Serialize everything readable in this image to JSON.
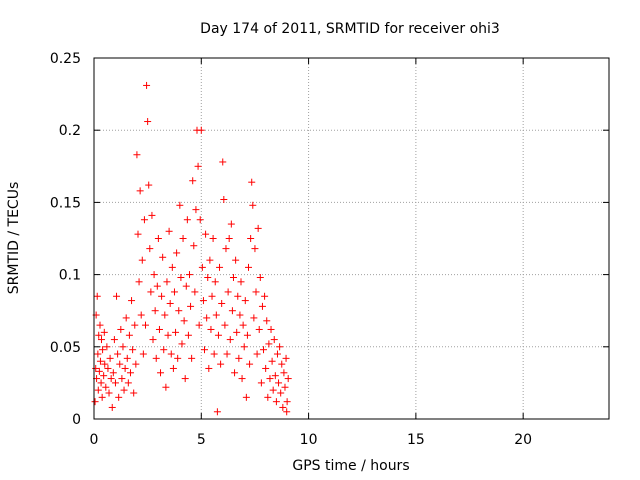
{
  "chart_data": {
    "type": "scatter",
    "title": "Day 174 of 2011, SRMTID for receiver ohi3",
    "xlabel": "GPS time / hours",
    "ylabel": "SRMTID / TECUs",
    "xlim": [
      0,
      24
    ],
    "ylim": [
      0,
      0.25
    ],
    "xticks": [
      0,
      5,
      10,
      15,
      20
    ],
    "yticks": [
      0,
      0.05,
      0.1,
      0.15,
      0.2,
      0.25
    ],
    "xtick_labels": [
      "0",
      "5",
      "10",
      "15",
      "20"
    ],
    "ytick_labels": [
      "0",
      "0.05",
      "0.1",
      "0.15",
      "0.2",
      "0.25"
    ],
    "grid": true,
    "marker": "+",
    "color": "#ff0000",
    "series": [
      {
        "name": "ohi3",
        "points": [
          [
            0.05,
            0.012
          ],
          [
            0.08,
            0.035
          ],
          [
            0.1,
            0.072
          ],
          [
            0.12,
            0.028
          ],
          [
            0.15,
            0.085
          ],
          [
            0.18,
            0.045
          ],
          [
            0.2,
            0.02
          ],
          [
            0.22,
            0.058
          ],
          [
            0.25,
            0.033
          ],
          [
            0.28,
            0.065
          ],
          [
            0.3,
            0.04
          ],
          [
            0.33,
            0.025
          ],
          [
            0.35,
            0.055
          ],
          [
            0.38,
            0.015
          ],
          [
            0.4,
            0.048
          ],
          [
            0.45,
            0.03
          ],
          [
            0.48,
            0.06
          ],
          [
            0.5,
            0.038
          ],
          [
            0.55,
            0.022
          ],
          [
            0.6,
            0.05
          ],
          [
            0.65,
            0.035
          ],
          [
            0.7,
            0.018
          ],
          [
            0.75,
            0.042
          ],
          [
            0.8,
            0.028
          ],
          [
            0.85,
            0.008
          ],
          [
            0.9,
            0.032
          ],
          [
            0.95,
            0.055
          ],
          [
            1.0,
            0.025
          ],
          [
            1.05,
            0.085
          ],
          [
            1.1,
            0.045
          ],
          [
            1.15,
            0.015
          ],
          [
            1.2,
            0.038
          ],
          [
            1.25,
            0.062
          ],
          [
            1.3,
            0.028
          ],
          [
            1.35,
            0.05
          ],
          [
            1.4,
            0.02
          ],
          [
            1.45,
            0.035
          ],
          [
            1.5,
            0.07
          ],
          [
            1.55,
            0.042
          ],
          [
            1.6,
            0.025
          ],
          [
            1.65,
            0.058
          ],
          [
            1.7,
            0.032
          ],
          [
            1.75,
            0.082
          ],
          [
            1.8,
            0.048
          ],
          [
            1.85,
            0.018
          ],
          [
            1.9,
            0.065
          ],
          [
            1.95,
            0.038
          ],
          [
            2.0,
            0.183
          ],
          [
            2.05,
            0.128
          ],
          [
            2.1,
            0.095
          ],
          [
            2.15,
            0.158
          ],
          [
            2.2,
            0.072
          ],
          [
            2.25,
            0.11
          ],
          [
            2.3,
            0.045
          ],
          [
            2.35,
            0.138
          ],
          [
            2.4,
            0.065
          ],
          [
            2.45,
            0.231
          ],
          [
            2.5,
            0.206
          ],
          [
            2.55,
            0.162
          ],
          [
            2.6,
            0.118
          ],
          [
            2.65,
            0.088
          ],
          [
            2.7,
            0.141
          ],
          [
            2.75,
            0.055
          ],
          [
            2.8,
            0.1
          ],
          [
            2.85,
            0.075
          ],
          [
            2.9,
            0.042
          ],
          [
            2.95,
            0.092
          ],
          [
            3.0,
            0.125
          ],
          [
            3.05,
            0.062
          ],
          [
            3.1,
            0.032
          ],
          [
            3.15,
            0.085
          ],
          [
            3.2,
            0.112
          ],
          [
            3.25,
            0.048
          ],
          [
            3.3,
            0.072
          ],
          [
            3.35,
            0.022
          ],
          [
            3.4,
            0.095
          ],
          [
            3.45,
            0.058
          ],
          [
            3.5,
            0.13
          ],
          [
            3.55,
            0.08
          ],
          [
            3.6,
            0.045
          ],
          [
            3.65,
            0.105
          ],
          [
            3.7,
            0.035
          ],
          [
            3.75,
            0.088
          ],
          [
            3.8,
            0.06
          ],
          [
            3.85,
            0.115
          ],
          [
            3.9,
            0.042
          ],
          [
            3.95,
            0.075
          ],
          [
            4.0,
            0.148
          ],
          [
            4.05,
            0.098
          ],
          [
            4.1,
            0.052
          ],
          [
            4.15,
            0.125
          ],
          [
            4.2,
            0.068
          ],
          [
            4.25,
            0.028
          ],
          [
            4.3,
            0.092
          ],
          [
            4.35,
            0.138
          ],
          [
            4.4,
            0.058
          ],
          [
            4.45,
            0.1
          ],
          [
            4.5,
            0.078
          ],
          [
            4.55,
            0.042
          ],
          [
            4.6,
            0.165
          ],
          [
            4.65,
            0.12
          ],
          [
            4.7,
            0.088
          ],
          [
            4.75,
            0.145
          ],
          [
            4.8,
            0.2
          ],
          [
            4.85,
            0.175
          ],
          [
            4.9,
            0.065
          ],
          [
            4.95,
            0.138
          ],
          [
            5.0,
            0.2
          ],
          [
            5.05,
            0.105
          ],
          [
            5.1,
            0.082
          ],
          [
            5.15,
            0.048
          ],
          [
            5.2,
            0.128
          ],
          [
            5.25,
            0.07
          ],
          [
            5.3,
            0.098
          ],
          [
            5.35,
            0.035
          ],
          [
            5.4,
            0.11
          ],
          [
            5.45,
            0.062
          ],
          [
            5.5,
            0.085
          ],
          [
            5.55,
            0.125
          ],
          [
            5.6,
            0.045
          ],
          [
            5.65,
            0.095
          ],
          [
            5.7,
            0.072
          ],
          [
            5.75,
            0.005
          ],
          [
            5.8,
            0.058
          ],
          [
            5.85,
            0.105
          ],
          [
            5.9,
            0.038
          ],
          [
            5.95,
            0.08
          ],
          [
            6.0,
            0.178
          ],
          [
            6.05,
            0.152
          ],
          [
            6.1,
            0.065
          ],
          [
            6.15,
            0.118
          ],
          [
            6.2,
            0.045
          ],
          [
            6.25,
            0.088
          ],
          [
            6.3,
            0.125
          ],
          [
            6.35,
            0.055
          ],
          [
            6.4,
            0.135
          ],
          [
            6.45,
            0.075
          ],
          [
            6.5,
            0.098
          ],
          [
            6.55,
            0.032
          ],
          [
            6.6,
            0.11
          ],
          [
            6.65,
            0.06
          ],
          [
            6.7,
            0.085
          ],
          [
            6.75,
            0.042
          ],
          [
            6.8,
            0.072
          ],
          [
            6.85,
            0.095
          ],
          [
            6.9,
            0.028
          ],
          [
            6.95,
            0.065
          ],
          [
            7.0,
            0.05
          ],
          [
            7.05,
            0.082
          ],
          [
            7.1,
            0.015
          ],
          [
            7.15,
            0.058
          ],
          [
            7.2,
            0.105
          ],
          [
            7.25,
            0.038
          ],
          [
            7.3,
            0.125
          ],
          [
            7.35,
            0.164
          ],
          [
            7.4,
            0.148
          ],
          [
            7.45,
            0.07
          ],
          [
            7.5,
            0.118
          ],
          [
            7.55,
            0.088
          ],
          [
            7.6,
            0.045
          ],
          [
            7.65,
            0.132
          ],
          [
            7.7,
            0.062
          ],
          [
            7.75,
            0.098
          ],
          [
            7.8,
            0.025
          ],
          [
            7.85,
            0.078
          ],
          [
            7.9,
            0.048
          ],
          [
            7.95,
            0.085
          ],
          [
            8.0,
            0.035
          ],
          [
            8.05,
            0.068
          ],
          [
            8.1,
            0.015
          ],
          [
            8.15,
            0.052
          ],
          [
            8.2,
            0.028
          ],
          [
            8.25,
            0.062
          ],
          [
            8.3,
            0.04
          ],
          [
            8.35,
            0.02
          ],
          [
            8.4,
            0.055
          ],
          [
            8.45,
            0.03
          ],
          [
            8.5,
            0.012
          ],
          [
            8.55,
            0.045
          ],
          [
            8.6,
            0.025
          ],
          [
            8.65,
            0.05
          ],
          [
            8.7,
            0.018
          ],
          [
            8.75,
            0.038
          ],
          [
            8.8,
            0.008
          ],
          [
            8.85,
            0.032
          ],
          [
            8.9,
            0.022
          ],
          [
            8.95,
            0.042
          ],
          [
            9.0,
            0.012
          ],
          [
            9.05,
            0.028
          ],
          [
            8.98,
            0.005
          ]
        ]
      }
    ]
  }
}
